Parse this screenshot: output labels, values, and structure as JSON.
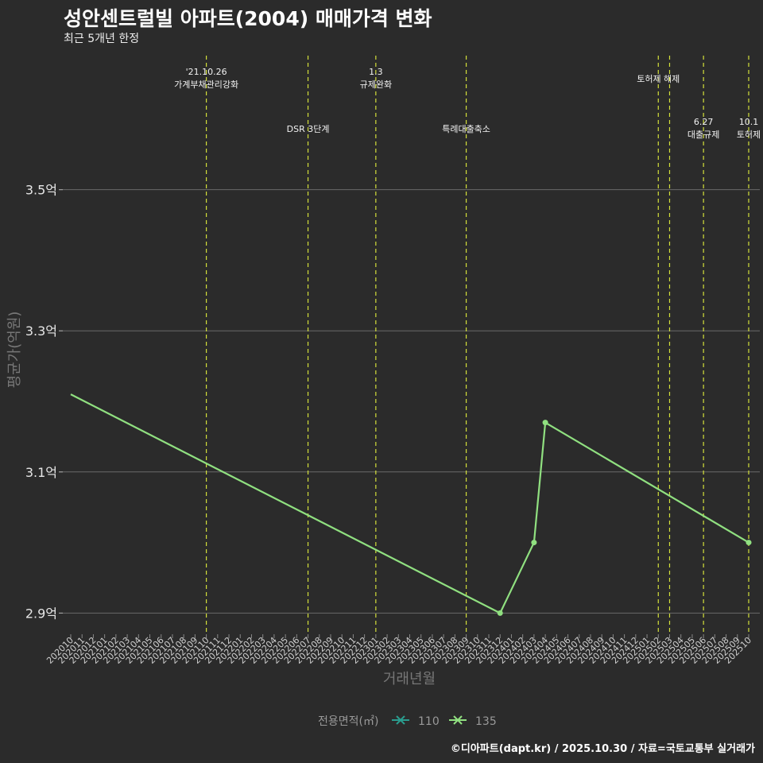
{
  "title": "성안센트럴빌 아파트(2004) 매매가격 변화",
  "subtitle": "최근 5개년 한정",
  "footer": "©디아파트(dapt.kr) / 2025.10.30 / 자료=국토교통부 실거래가",
  "colors": {
    "background": "#2b2b2b",
    "grid": "#6a6a6a",
    "series_135": "#90e080",
    "series_110": "#2a9d8f",
    "event_line": "#d4e03a"
  },
  "chart_data": {
    "type": "line",
    "title": "성안센트럴빌 아파트(2004) 매매가격 변화",
    "xlabel": "거래년월",
    "ylabel": "평균가(억원)",
    "categories": [
      "202010",
      "202011",
      "202012",
      "202101",
      "202102",
      "202103",
      "202104",
      "202105",
      "202106",
      "202107",
      "202108",
      "202109",
      "202110",
      "202111",
      "202112",
      "202201",
      "202202",
      "202203",
      "202204",
      "202205",
      "202206",
      "202207",
      "202208",
      "202209",
      "202210",
      "202211",
      "202212",
      "202301",
      "202302",
      "202303",
      "202304",
      "202305",
      "202306",
      "202307",
      "202308",
      "202309",
      "202310",
      "202311",
      "202312",
      "202401",
      "202402",
      "202403",
      "202404",
      "202405",
      "202406",
      "202407",
      "202408",
      "202409",
      "202410",
      "202411",
      "202412",
      "202501",
      "202502",
      "202503",
      "202504",
      "202505",
      "202506",
      "202507",
      "202508",
      "202509",
      "202510"
    ],
    "ylim": [
      2.87,
      3.69
    ],
    "yticks": [
      2.9,
      3.1,
      3.3,
      3.5
    ],
    "ytick_labels": [
      "2.9억",
      "3.1억",
      "3.3억",
      "3.5억"
    ],
    "legend": {
      "title": "전용면적(㎡)",
      "position": "bottom",
      "entries": [
        "110",
        "135"
      ]
    },
    "series": [
      {
        "name": "135",
        "points": [
          {
            "x": "202010",
            "y": 3.21,
            "marker": false
          },
          {
            "x": "202312",
            "y": 2.9,
            "marker": true
          },
          {
            "x": "202403",
            "y": 3.0,
            "marker": true
          },
          {
            "x": "202404",
            "y": 3.17,
            "marker": true
          },
          {
            "x": "202510",
            "y": 3.0,
            "marker": true
          }
        ]
      },
      {
        "name": "110",
        "points": []
      }
    ],
    "events": [
      {
        "x": "202110",
        "lines": [
          "'21.10.26",
          "가계부채관리강화"
        ],
        "row": 0
      },
      {
        "x": "202207",
        "lines": [
          "DSR 3단계"
        ],
        "row": 1
      },
      {
        "x": "202301",
        "lines": [
          "1.3",
          "규제완화"
        ],
        "row": 0
      },
      {
        "x": "202309",
        "lines": [
          "특례대출축소"
        ],
        "row": 1
      },
      {
        "x": "202502",
        "lines": [
          "토허제 해제"
        ],
        "row": 0
      },
      {
        "x": "202503",
        "lines": [],
        "row": 0
      },
      {
        "x": "202506",
        "lines": [
          "6.27",
          "대출규제"
        ],
        "row": 1
      },
      {
        "x": "202510",
        "lines": [
          "10.1",
          "토허제"
        ],
        "row": 1
      }
    ]
  }
}
